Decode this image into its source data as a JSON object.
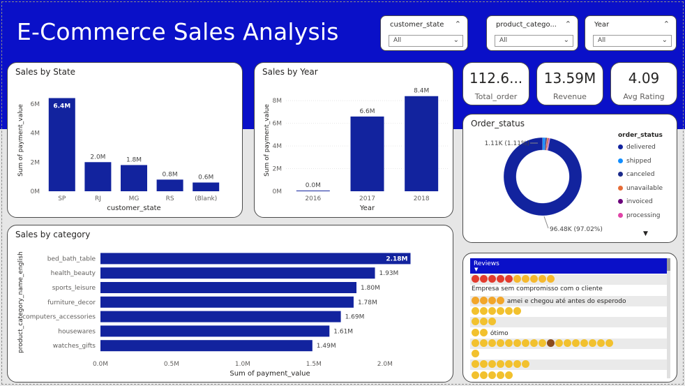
{
  "title": "E-Commerce Sales Analysis",
  "slicers": [
    {
      "label": "customer_state",
      "value": "All"
    },
    {
      "label": "product_catego...",
      "value": "All"
    },
    {
      "label": "Year",
      "value": "All"
    }
  ],
  "kpis": [
    {
      "value": "112.6...",
      "label": "Total_order"
    },
    {
      "value": "13.59M",
      "label": "Revenue"
    },
    {
      "value": "4.09",
      "label": "Avg Rating"
    }
  ],
  "colors": {
    "banner": "#0a10c8",
    "bar": "#12239e",
    "accent": "#0a10c8"
  },
  "chart_data": [
    {
      "id": "state",
      "type": "bar",
      "title": "Sales by State",
      "xlabel": "customer_state",
      "ylabel": "Sum of payment_value",
      "categories": [
        "SP",
        "RJ",
        "MG",
        "RS",
        "(Blank)"
      ],
      "values": [
        6.4,
        2.0,
        1.8,
        0.8,
        0.6
      ],
      "labels": [
        "6.4M",
        "2.0M",
        "1.8M",
        "0.8M",
        "0.6M"
      ],
      "ticks": [
        "0M",
        "2M",
        "4M",
        "6M"
      ],
      "ylim": [
        0,
        7
      ]
    },
    {
      "id": "year",
      "type": "bar",
      "title": "Sales by Year",
      "xlabel": "Year",
      "ylabel": "Sum of payment_value",
      "categories": [
        "2016",
        "2017",
        "2018"
      ],
      "values": [
        0.0,
        6.6,
        8.4
      ],
      "labels": [
        "0.0M",
        "6.6M",
        "8.4M"
      ],
      "ticks": [
        "0M",
        "2M",
        "4M",
        "6M",
        "8M"
      ],
      "ylim": [
        0,
        9
      ]
    },
    {
      "id": "category",
      "type": "bar",
      "orientation": "horizontal",
      "title": "Sales by category",
      "xlabel": "Sum of payment_value",
      "ylabel": "product_category_name_english",
      "categories": [
        "bed_bath_table",
        "health_beauty",
        "sports_leisure",
        "furniture_decor",
        "computers_accessories",
        "housewares",
        "watches_gifts"
      ],
      "values": [
        2.18,
        1.93,
        1.8,
        1.78,
        1.69,
        1.61,
        1.49
      ],
      "labels": [
        "2.18M",
        "1.93M",
        "1.80M",
        "1.78M",
        "1.69M",
        "1.61M",
        "1.49M"
      ],
      "ticks": [
        "0.0M",
        "0.5M",
        "1.0M",
        "1.5M",
        "2.0M"
      ],
      "xlim": [
        0,
        2.18
      ]
    },
    {
      "id": "status",
      "type": "pie",
      "title": "Order_status",
      "legend_title": "order_status",
      "legend": [
        {
          "name": "delivered",
          "color": "#12239e"
        },
        {
          "name": "shipped",
          "color": "#118dff"
        },
        {
          "name": "canceled",
          "color": "#1b2a8a"
        },
        {
          "name": "unavailable",
          "color": "#e66c37"
        },
        {
          "name": "invoiced",
          "color": "#6b007b"
        },
        {
          "name": "processing",
          "color": "#e044a7"
        }
      ],
      "values": [
        96.48,
        1.11,
        0.63,
        0.61,
        0.32,
        0.3
      ],
      "label_major": "96.48K (97.02%)",
      "label_minor": "1.11K (1.11%)"
    }
  ],
  "reviews": {
    "header": "Reviews",
    "rows": [
      {
        "emojis": [
          "#e23b2e",
          "#e23b2e",
          "#e23b2e",
          "#e23b2e",
          "#e23b2e",
          "#f5b82e",
          "#f5b82e",
          "#f5b82e",
          "#f5b82e",
          "#f5b82e"
        ],
        "text": ""
      },
      {
        "emojis": [],
        "text": "Empresa sem compromisso com o cliente"
      },
      {
        "emojis": [
          "#f2a62a",
          "#f2a62a",
          "#f2a62a",
          "#f2a62a"
        ],
        "text": "amei e chegou até antes do esperodo"
      },
      {
        "emojis": [
          "#f2c12e",
          "#f2c12e",
          "#f2c12e",
          "#f2c12e",
          "#f2c12e",
          "#f2c12e"
        ],
        "text": ""
      },
      {
        "emojis": [
          "#f2c12e",
          "#f2c12e",
          "#f2c12e"
        ],
        "text": ""
      },
      {
        "emojis": [
          "#f2c12e",
          "#f2c12e"
        ],
        "text": "ótimo"
      },
      {
        "emojis": [
          "#f2c12e",
          "#f2c12e",
          "#f2c12e",
          "#f2c12e",
          "#f2c12e",
          "#f2c12e",
          "#f2c12e",
          "#f2c12e",
          "#f2c12e",
          "#8a4b1d",
          "#f2c12e",
          "#f2c12e",
          "#f2c12e",
          "#f2c12e",
          "#f2c12e",
          "#f2c12e",
          "#f2c12e"
        ],
        "text": ""
      },
      {
        "emojis": [
          "#f2c12e"
        ],
        "text": ""
      },
      {
        "emojis": [
          "#f2c12e",
          "#f2c12e",
          "#f2c12e",
          "#f2c12e",
          "#f2c12e",
          "#f2c12e",
          "#f2c12e"
        ],
        "text": ""
      },
      {
        "emojis": [
          "#f2c12e",
          "#f2c12e",
          "#f2c12e",
          "#f2c12e",
          "#f2c12e"
        ],
        "text": ""
      }
    ]
  }
}
